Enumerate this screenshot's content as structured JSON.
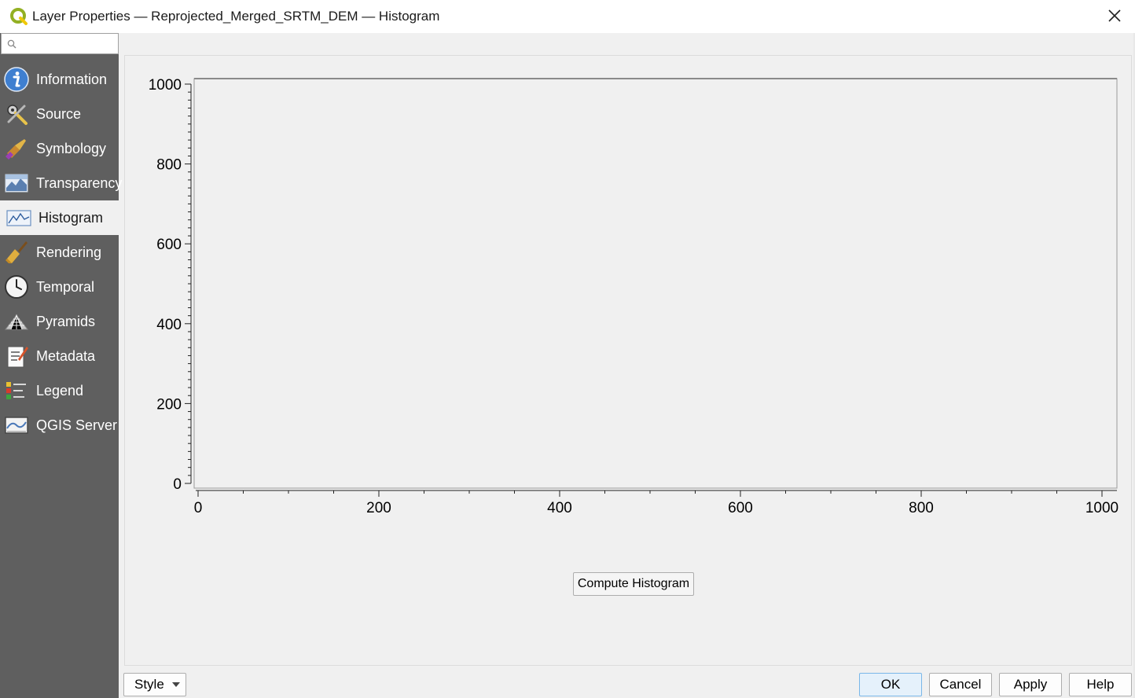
{
  "window": {
    "title": "Layer Properties — Reprojected_Merged_SRTM_DEM — Histogram",
    "app_icon": "qgis-logo-icon",
    "close_icon": "close-icon"
  },
  "sidebar": {
    "search_placeholder": "",
    "selected": "Histogram",
    "items": [
      {
        "label": "Information",
        "icon": "information-icon"
      },
      {
        "label": "Source",
        "icon": "source-wrench-icon"
      },
      {
        "label": "Symbology",
        "icon": "symbology-brush-icon"
      },
      {
        "label": "Transparency",
        "icon": "transparency-icon"
      },
      {
        "label": "Histogram",
        "icon": "histogram-icon"
      },
      {
        "label": "Rendering",
        "icon": "rendering-brush-icon"
      },
      {
        "label": "Temporal",
        "icon": "temporal-clock-icon"
      },
      {
        "label": "Pyramids",
        "icon": "pyramids-icon"
      },
      {
        "label": "Metadata",
        "icon": "metadata-pencil-icon"
      },
      {
        "label": "Legend",
        "icon": "legend-icon"
      },
      {
        "label": "QGIS Server",
        "icon": "qgis-server-icon"
      }
    ]
  },
  "histogram": {
    "compute_label": "Compute Histogram"
  },
  "chart_data": {
    "type": "bar",
    "title": "",
    "xlabel": "",
    "ylabel": "",
    "xlim": [
      0,
      1000
    ],
    "ylim": [
      0,
      1000
    ],
    "x_ticks": [
      0,
      200,
      400,
      600,
      800,
      1000
    ],
    "y_ticks": [
      0,
      200,
      400,
      600,
      800,
      1000
    ],
    "series": [],
    "grid": false
  },
  "footer": {
    "style_label": "Style",
    "ok_label": "OK",
    "cancel_label": "Cancel",
    "apply_label": "Apply",
    "help_label": "Help"
  },
  "colors": {
    "sidebar_bg": "#5f5f5f",
    "selected_bg": "#f0f0f0",
    "ok_border": "#7ab7e8"
  }
}
